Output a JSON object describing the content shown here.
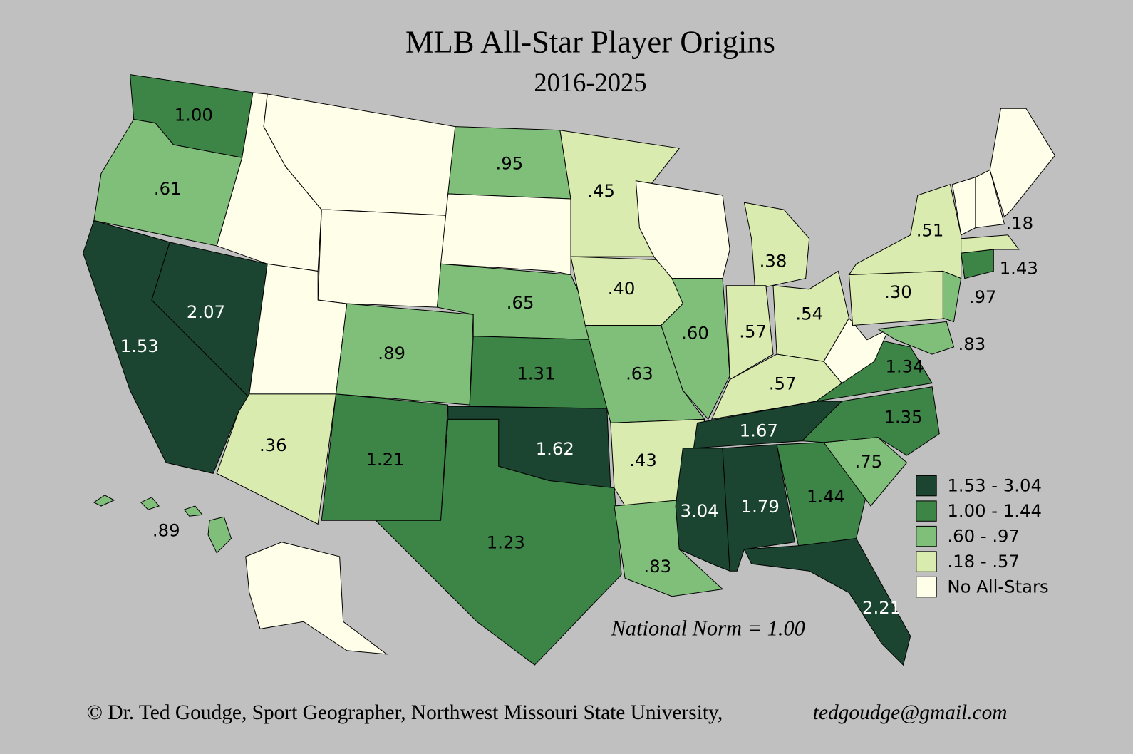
{
  "header": {
    "title": "MLB All-Star Player Origins",
    "subtitle": "2016-2025"
  },
  "legend": [
    {
      "label": "1.53 - 3.04",
      "color": "#1b4530"
    },
    {
      "label": "1.00 - 1.44",
      "color": "#3d8447"
    },
    {
      "label": ".60 - .97",
      "color": "#80bf7a"
    },
    {
      "label": ".18 - .57",
      "color": "#d9ebaf"
    },
    {
      "label": "No All-Stars",
      "color": "#fefee9"
    }
  ],
  "states": [
    {
      "label": "1.00",
      "color": "#3d8447"
    },
    {
      "label": ".61",
      "color": "#80bf7a"
    },
    {
      "label": "1.53",
      "color": "#1b4530"
    },
    {
      "label": "2.07",
      "color": "#1b4530"
    },
    {
      "color": "#fefee9"
    },
    {
      "color": "#fefee9"
    },
    {
      "color": "#fefee9"
    },
    {
      "color": "#fefee9"
    },
    {
      "label": ".36",
      "color": "#d9ebaf"
    },
    {
      "label": ".89",
      "color": "#80bf7a"
    },
    {
      "label": "1.21",
      "color": "#3d8447"
    },
    {
      "label": ".95",
      "color": "#80bf7a"
    },
    {
      "color": "#fefee9"
    },
    {
      "label": ".65",
      "color": "#80bf7a"
    },
    {
      "label": "1.31",
      "color": "#3d8447"
    },
    {
      "label": "1.62",
      "color": "#1b4530"
    },
    {
      "label": "1.23",
      "color": "#3d8447"
    },
    {
      "label": ".45",
      "color": "#d9ebaf"
    },
    {
      "label": ".40",
      "color": "#d9ebaf"
    },
    {
      "label": ".63",
      "color": "#80bf7a"
    },
    {
      "label": ".43",
      "color": "#d9ebaf"
    },
    {
      "label": ".83",
      "color": "#80bf7a"
    },
    {
      "color": "#fefee9"
    },
    {
      "label": ".60",
      "color": "#80bf7a"
    },
    {
      "label": ".38",
      "color": "#d9ebaf"
    },
    {
      "label": ".57",
      "color": "#d9ebaf"
    },
    {
      "label": ".54",
      "color": "#d9ebaf"
    },
    {
      "label": ".57",
      "color": "#d9ebaf"
    },
    {
      "label": "1.67",
      "color": "#1b4530"
    },
    {
      "label": "3.04",
      "color": "#1b4530"
    },
    {
      "label": "1.79",
      "color": "#1b4530"
    },
    {
      "label": "1.44",
      "color": "#3d8447"
    },
    {
      "label": "2.21",
      "color": "#1b4530"
    },
    {
      "label": ".75",
      "color": "#80bf7a"
    },
    {
      "label": "1.35",
      "color": "#3d8447"
    },
    {
      "label": "1.34",
      "color": "#3d8447"
    },
    {
      "color": "#fefee9"
    },
    {
      "label": ".30",
      "color": "#d9ebaf"
    },
    {
      "label": ".51",
      "color": "#d9ebaf"
    },
    {
      "label": ".97",
      "color": "#80bf7a"
    },
    {
      "label": ".83",
      "color": "#80bf7a"
    },
    {
      "label": "1.43",
      "color": "#3d8447"
    },
    {
      "label": ".18",
      "color": "#d9ebaf"
    },
    {
      "color": "#fefee9"
    },
    {
      "color": "#fefee9"
    },
    {
      "color": "#fefee9"
    },
    {
      "color": "#fefee9"
    },
    {
      "label": ".89",
      "color": "#80bf7a"
    }
  ],
  "note": "National Norm = 1.00",
  "footer": {
    "credit": "© Dr. Ted Goudge, Sport Geographer, Northwest Missouri State University,",
    "email": "tedgoudge@gmail.com"
  }
}
